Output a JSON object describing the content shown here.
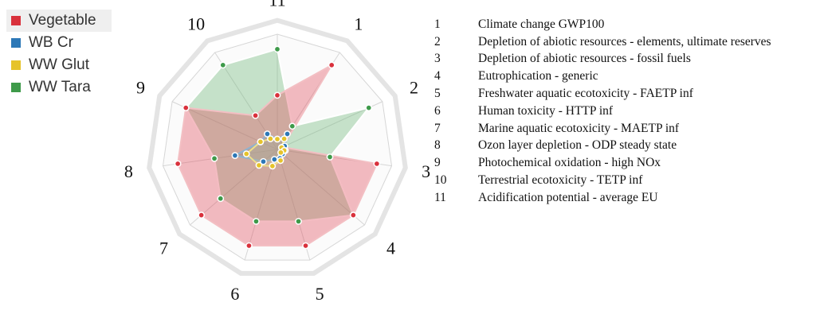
{
  "chart_data": {
    "type": "radar",
    "axes": [
      "1",
      "2",
      "3",
      "4",
      "5",
      "6",
      "7",
      "8",
      "9",
      "10",
      "11"
    ],
    "rmax": 10,
    "rings": 10,
    "series": [
      {
        "name": "Vegetable",
        "color": "#d9313c",
        "fill": "rgba(225,70,85,0.36)",
        "line": "#f3bfc3",
        "values": [
          8.7,
          0.5,
          8.7,
          8.7,
          8.7,
          8.7,
          8.7,
          8.7,
          8.7,
          3.5,
          4.7
        ]
      },
      {
        "name": "WB Cr",
        "color": "#2d78b7",
        "fill": "rgba(120,140,150,0.30)",
        "line": "#8fb3cf",
        "values": [
          1.6,
          0.7,
          0.7,
          0.6,
          0.8,
          0.9,
          1.6,
          3.7,
          1.6,
          1.6,
          0.9
        ]
      },
      {
        "name": "WW Glut",
        "color": "#e6c32a",
        "fill": "rgba(200,190,150,0.30)",
        "line": "#efe08a",
        "values": [
          1.1,
          0.4,
          0.6,
          0.4,
          1.0,
          1.5,
          2.1,
          2.7,
          1.6,
          1.1,
          0.9
        ]
      },
      {
        "name": "WW Tara",
        "color": "#3e9a4a",
        "fill": "rgba(110,185,120,0.38)",
        "line": "#ffffff",
        "values": [
          2.4,
          8.7,
          4.6,
          8.7,
          6.5,
          6.5,
          6.5,
          5.5,
          8.7,
          8.7,
          8.7
        ]
      }
    ],
    "legend_position": "top-left",
    "grid": true
  },
  "indicator_list": [
    {
      "num": "1",
      "label": "Climate change GWP100"
    },
    {
      "num": "2",
      "label": "Depletion of abiotic resources - elements, ultimate reserves"
    },
    {
      "num": "3",
      "label": "Depletion of abiotic resources - fossil fuels"
    },
    {
      "num": "4",
      "label": "Eutrophication - generic"
    },
    {
      "num": "5",
      "label": "Freshwater aquatic ecotoxicity - FAETP inf"
    },
    {
      "num": "6",
      "label": "Human toxicity - HTTP inf"
    },
    {
      "num": "7",
      "label": "Marine aquatic ecotoxicity - MAETP inf"
    },
    {
      "num": "8",
      "label": "Ozon layer depletion - ODP steady state"
    },
    {
      "num": "9",
      "label": "Photochemical oxidation - high NOx"
    },
    {
      "num": "10",
      "label": "Terrestrial ecotoxicity - TETP inf"
    },
    {
      "num": "11",
      "label": "Acidification potential - average EU"
    }
  ]
}
